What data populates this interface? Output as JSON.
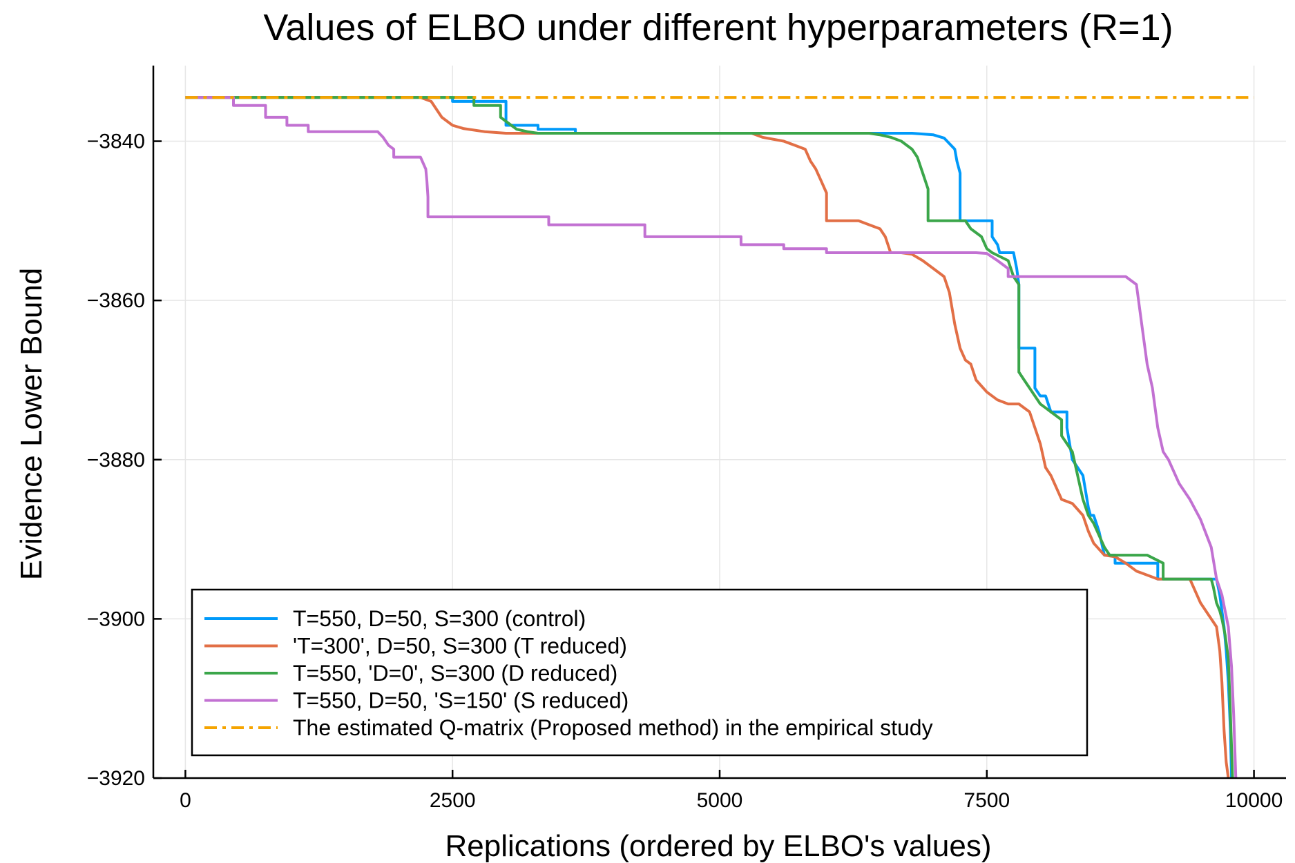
{
  "chart_data": {
    "type": "line",
    "title": "Values of ELBO under different hyperparameters (R=1)",
    "xlabel": "Replications (ordered by ELBO's values)",
    "ylabel": "Evidence Lower Bound",
    "xlim": [
      -300,
      10300
    ],
    "ylim": [
      -3920,
      -3830.5
    ],
    "xticks": [
      0,
      2500,
      5000,
      7500,
      10000
    ],
    "xtick_labels": [
      "0",
      "2500",
      "5000",
      "7500",
      "10000"
    ],
    "yticks": [
      -3840,
      -3860,
      -3880,
      -3900,
      -3920
    ],
    "ytick_labels": [
      "−3840",
      "−3860",
      "−3880",
      "−3900",
      "−3920"
    ],
    "grid": true,
    "legend_position": "bottom-left",
    "series": [
      {
        "name": "T=550, D=50, S=300 (control)",
        "color": "#009AFA",
        "style": "solid",
        "x": [
          0,
          2500,
          2500,
          3000,
          3000,
          3300,
          3300,
          3650,
          3650,
          6500,
          6800,
          7000,
          7100,
          7200,
          7220,
          7250,
          7250,
          7550,
          7550,
          7600,
          7620,
          7750,
          7780,
          7800,
          7800,
          7950,
          7950,
          8000,
          8050,
          8100,
          8150,
          8250,
          8250,
          8300,
          8400,
          8450,
          8470,
          8500,
          8550,
          8600,
          8650,
          8700,
          8700,
          9100,
          9100,
          9650,
          9680,
          9700,
          9720,
          9740,
          9760,
          9780,
          9790
        ],
        "y": [
          -3834.5,
          -3834.5,
          -3835.0,
          -3835.0,
          -3838.0,
          -3838.0,
          -3838.5,
          -3838.5,
          -3839.0,
          -3839.0,
          -3839.0,
          -3839.2,
          -3839.6,
          -3841.0,
          -3842.5,
          -3844.0,
          -3850.0,
          -3850.0,
          -3852.0,
          -3853.0,
          -3854.0,
          -3854.0,
          -3856.0,
          -3858.0,
          -3866.0,
          -3866.0,
          -3871.0,
          -3872.0,
          -3872.0,
          -3874.0,
          -3874.0,
          -3874.0,
          -3876.0,
          -3880.0,
          -3882.0,
          -3886.0,
          -3887.0,
          -3887.0,
          -3889.0,
          -3892.0,
          -3892.0,
          -3892.0,
          -3893.0,
          -3893.0,
          -3895.0,
          -3895.0,
          -3897.0,
          -3899.0,
          -3901.0,
          -3904.0,
          -3908.0,
          -3914.0,
          -3920.0
        ]
      },
      {
        "name": "'T=300', D=50, S=300 (T reduced)",
        "color": "#E26F46",
        "style": "solid",
        "x": [
          0,
          2200,
          2300,
          2400,
          2500,
          2600,
          2800,
          3000,
          3000,
          5300,
          5400,
          5600,
          5700,
          5800,
          5850,
          5900,
          5950,
          6000,
          6000,
          6300,
          6400,
          6500,
          6550,
          6600,
          6700,
          6800,
          6900,
          7000,
          7100,
          7150,
          7200,
          7250,
          7300,
          7350,
          7400,
          7500,
          7600,
          7700,
          7800,
          7900,
          8000,
          8050,
          8100,
          8200,
          8300,
          8400,
          8450,
          8500,
          8600,
          8700,
          8800,
          8900,
          9100,
          9400,
          9500,
          9600,
          9650,
          9680,
          9700,
          9720,
          9740,
          9760
        ],
        "y": [
          -3834.5,
          -3834.5,
          -3835.0,
          -3837.0,
          -3838.0,
          -3838.4,
          -3838.8,
          -3839.0,
          -3839.0,
          -3839.0,
          -3839.5,
          -3840.0,
          -3840.5,
          -3841.0,
          -3842.5,
          -3843.5,
          -3845.0,
          -3846.5,
          -3850.0,
          -3850.0,
          -3850.5,
          -3851.0,
          -3852.0,
          -3854.0,
          -3854.0,
          -3854.2,
          -3855.0,
          -3856.0,
          -3857.0,
          -3859.0,
          -3863.0,
          -3866.0,
          -3867.5,
          -3868.0,
          -3870.0,
          -3871.5,
          -3872.5,
          -3873.0,
          -3873.0,
          -3874.0,
          -3878.0,
          -3881.0,
          -3882.0,
          -3885.0,
          -3885.5,
          -3887.0,
          -3889.0,
          -3890.5,
          -3892.0,
          -3892.2,
          -3893.0,
          -3894.0,
          -3895.0,
          -3895.0,
          -3898.0,
          -3900.0,
          -3901.0,
          -3904.0,
          -3908.0,
          -3914.0,
          -3918.0,
          -3920.0
        ]
      },
      {
        "name": "T=550, 'D=0', S=300 (D reduced)",
        "color": "#3BA64A",
        "style": "solid",
        "x": [
          0,
          2700,
          2700,
          2950,
          2950,
          3050,
          3100,
          3200,
          3300,
          6400,
          6500,
          6600,
          6700,
          6800,
          6850,
          6900,
          6950,
          6950,
          7300,
          7350,
          7450,
          7500,
          7550,
          7700,
          7750,
          7800,
          7800,
          7850,
          7950,
          8000,
          8050,
          8100,
          8200,
          8200,
          8300,
          8350,
          8400,
          8450,
          8500,
          8600,
          8650,
          8700,
          9000,
          9150,
          9150,
          9600,
          9620,
          9650,
          9680,
          9700,
          9730,
          9760,
          9780,
          9800
        ],
        "y": [
          -3834.5,
          -3834.5,
          -3835.5,
          -3835.5,
          -3837.0,
          -3838.0,
          -3838.5,
          -3838.8,
          -3839.0,
          -3839.0,
          -3839.2,
          -3839.5,
          -3840.0,
          -3841.0,
          -3842.0,
          -3844.0,
          -3846.0,
          -3850.0,
          -3850.0,
          -3851.0,
          -3852.0,
          -3853.5,
          -3854.0,
          -3855.0,
          -3857.0,
          -3858.0,
          -3869.0,
          -3870.0,
          -3872.0,
          -3873.0,
          -3873.5,
          -3874.0,
          -3875.0,
          -3877.0,
          -3879.0,
          -3882.0,
          -3885.0,
          -3887.0,
          -3888.0,
          -3891.0,
          -3892.0,
          -3892.0,
          -3892.0,
          -3893.0,
          -3895.0,
          -3895.0,
          -3896.0,
          -3898.0,
          -3899.0,
          -3900.0,
          -3902.0,
          -3905.0,
          -3912.0,
          -3920.0
        ]
      },
      {
        "name": "T=550, D=50, 'S=150' (S reduced)",
        "color": "#C271D2",
        "style": "solid",
        "x": [
          0,
          450,
          450,
          750,
          750,
          950,
          950,
          1150,
          1150,
          1800,
          1850,
          1900,
          1950,
          1950,
          2200,
          2250,
          2260,
          2270,
          2270,
          3400,
          3400,
          4300,
          4300,
          5200,
          5200,
          5600,
          5600,
          6000,
          6000,
          7200,
          7300,
          7400,
          7500,
          7600,
          7700,
          7700,
          8800,
          8900,
          8950,
          9000,
          9050,
          9100,
          9150,
          9200,
          9300,
          9400,
          9500,
          9600,
          9650,
          9700,
          9730,
          9760,
          9790,
          9810,
          9830
        ],
        "y": [
          -3834.5,
          -3834.5,
          -3835.5,
          -3835.5,
          -3837.0,
          -3837.0,
          -3838.0,
          -3838.0,
          -3838.8,
          -3838.8,
          -3839.5,
          -3840.5,
          -3841.0,
          -3842.0,
          -3842.0,
          -3843.5,
          -3845.0,
          -3847.0,
          -3849.5,
          -3849.5,
          -3850.5,
          -3850.5,
          -3852.0,
          -3852.0,
          -3853.0,
          -3853.0,
          -3853.5,
          -3853.5,
          -3854.0,
          -3854.0,
          -3854.0,
          -3854.0,
          -3854.1,
          -3855.0,
          -3856.0,
          -3857.0,
          -3857.0,
          -3858.0,
          -3863.0,
          -3868.0,
          -3871.0,
          -3876.0,
          -3879.0,
          -3880.0,
          -3883.0,
          -3885.0,
          -3887.5,
          -3891.0,
          -3895.0,
          -3897.0,
          -3899.0,
          -3901.0,
          -3906.0,
          -3912.0,
          -3920.0
        ]
      },
      {
        "name": "The estimated Q-matrix (Proposed method) in the empirical study",
        "color": "#F5A400",
        "style": "dashdot",
        "x": [
          0,
          10000
        ],
        "y": [
          -3834.5,
          -3834.5
        ]
      }
    ]
  }
}
